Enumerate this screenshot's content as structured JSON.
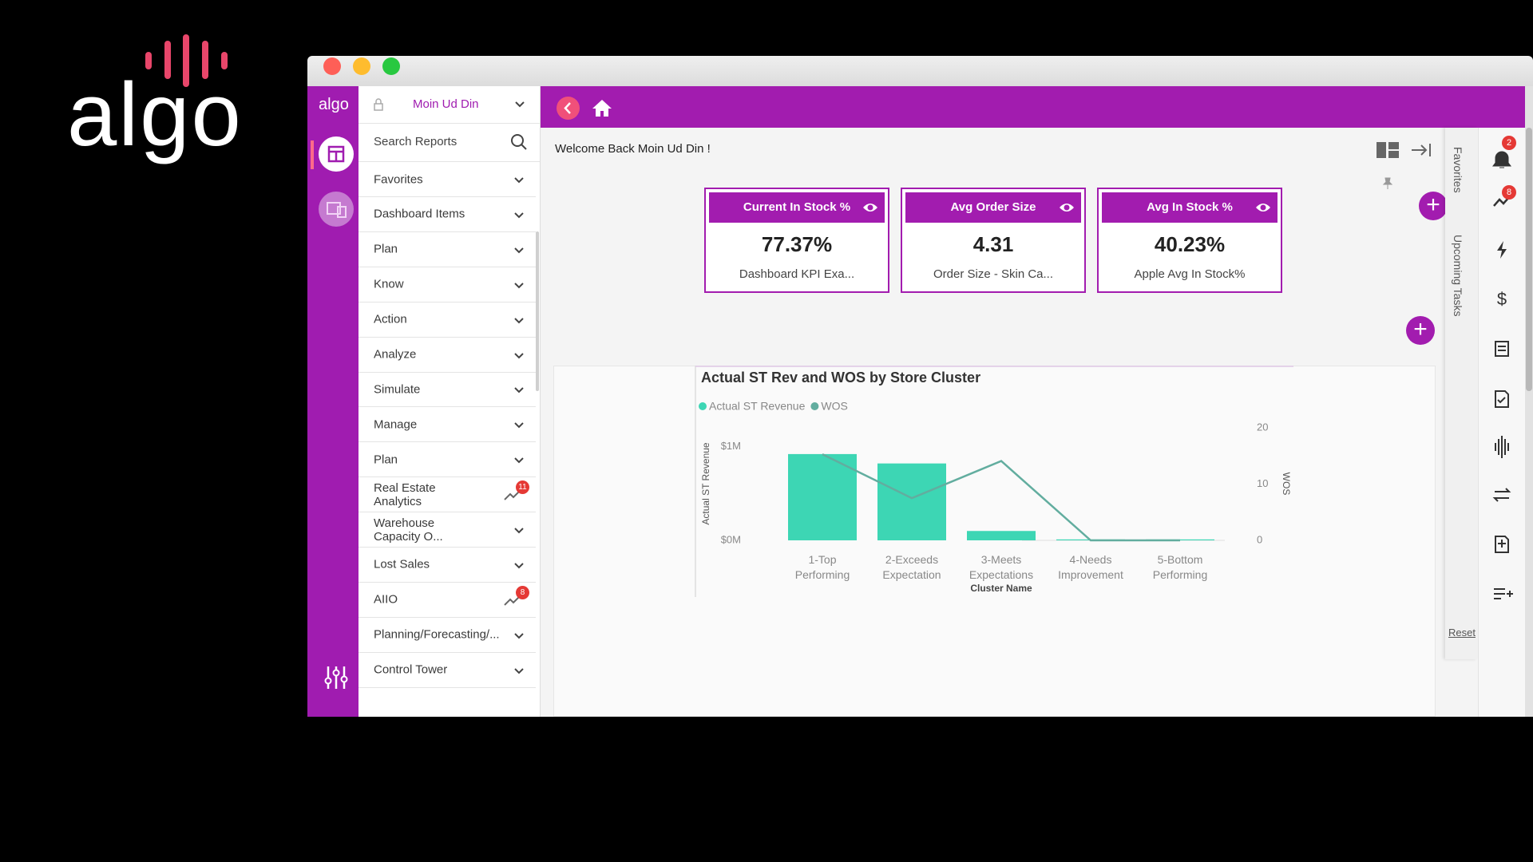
{
  "logo": "algo",
  "app_logo": "algo",
  "user": "Moin Ud Din",
  "search_placeholder": "Search Reports",
  "menu": [
    {
      "label": "Favorites"
    },
    {
      "label": "Dashboard Items"
    },
    {
      "label": "Plan"
    },
    {
      "label": "Know"
    },
    {
      "label": "Action"
    },
    {
      "label": "Analyze"
    },
    {
      "label": "Simulate"
    },
    {
      "label": "Manage"
    },
    {
      "label": "Plan"
    },
    {
      "label": "Real Estate Analytics",
      "badge": 11
    },
    {
      "label": "Warehouse Capacity O..."
    },
    {
      "label": "Lost Sales"
    },
    {
      "label": "AIIO",
      "badge": 8
    },
    {
      "label": "Planning/Forecasting/..."
    },
    {
      "label": "Control Tower"
    }
  ],
  "welcome": "Welcome Back Moin Ud Din !",
  "kpis": [
    {
      "title": "Current In Stock %",
      "value": "77.37%",
      "subtitle": "Dashboard KPI Exa..."
    },
    {
      "title": "Avg Order Size",
      "value": "4.31",
      "subtitle": "Order Size - Skin Ca..."
    },
    {
      "title": "Avg In Stock %",
      "value": "40.23%",
      "subtitle": "Apple Avg In Stock%"
    }
  ],
  "side_tabs": [
    "Favorites",
    "Upcoming Tasks"
  ],
  "reset": "Reset",
  "notifications": {
    "alerts": 2,
    "trends": 8
  },
  "chart_data": {
    "type": "combo",
    "title": "Actual ST Rev and WOS by Store Cluster",
    "x_label": "Cluster Name",
    "y_label": "Actual ST Revenue",
    "y2_label": "WOS",
    "categories": [
      "1-Top Performing",
      "2-Exceeds Expectation",
      "3-Meets Expectations",
      "4-Needs Improvement",
      "5-Bottom Performing"
    ],
    "series": [
      {
        "name": "Actual ST Revenue",
        "type": "bar",
        "color": "#3dd6b4",
        "values": [
          920000,
          820000,
          100000,
          10000,
          10000
        ]
      },
      {
        "name": "WOS",
        "type": "line",
        "axis": "y2",
        "color": "#62ad9f",
        "values": [
          15.3,
          7.5,
          14.1,
          0,
          0
        ]
      }
    ],
    "ylim": [
      0,
      1200000
    ],
    "yticks": [
      {
        "value": 0,
        "label": "$0M"
      },
      {
        "value": 1000000,
        "label": "$1M"
      }
    ],
    "y2lim": [
      0,
      20
    ],
    "y2ticks": [
      0,
      10,
      20
    ],
    "grid": false
  }
}
